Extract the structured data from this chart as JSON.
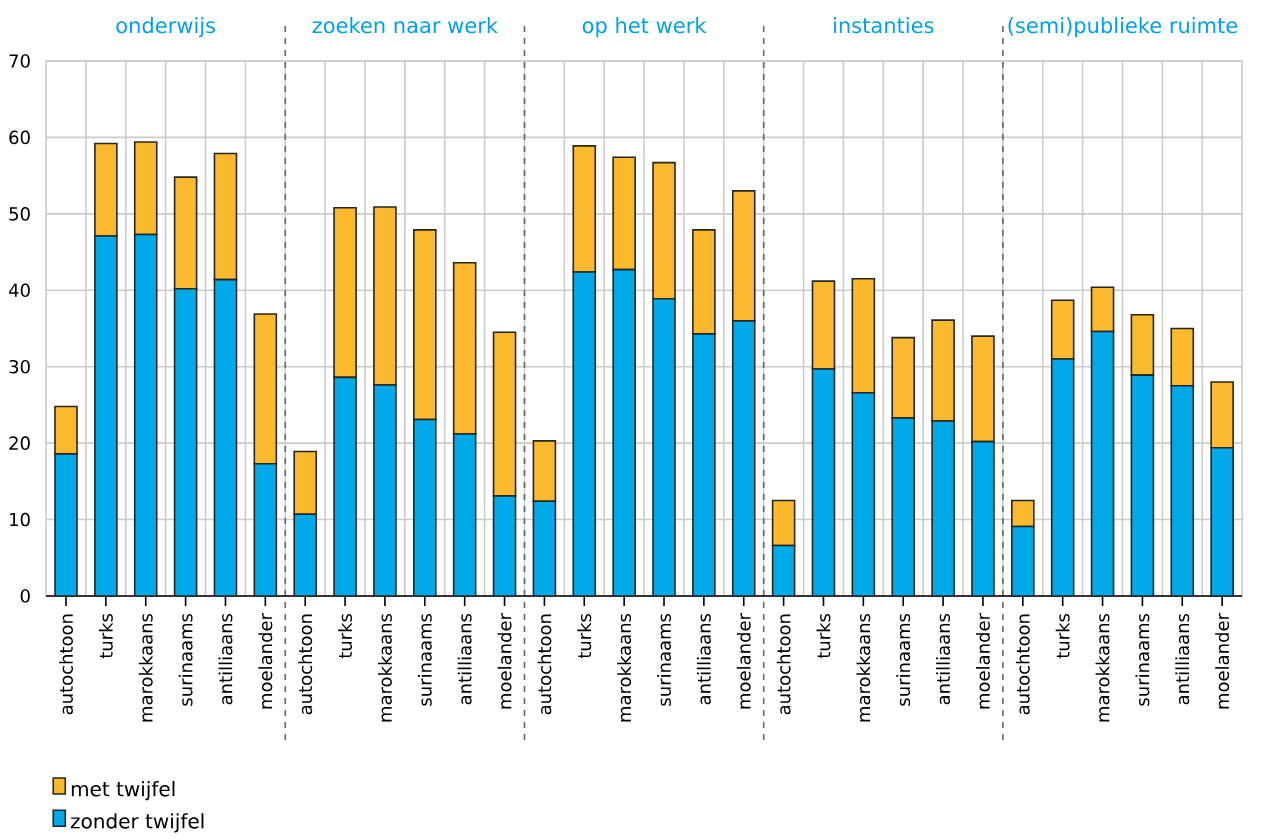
{
  "chart_data": {
    "type": "bar",
    "stacked": true,
    "categories": [
      "autochtoon",
      "turks",
      "marokkaans",
      "surinaams",
      "antilliaans",
      "moelander",
      "autochtoon",
      "turks",
      "marokkaans",
      "surinaams",
      "antilliaans",
      "moelander",
      "autochtoon",
      "turks",
      "marokkaans",
      "surinaams",
      "antilliaans",
      "moelander",
      "autochtoon",
      "turks",
      "marokkaans",
      "surinaams",
      "antilliaans",
      "moelander",
      "autochtoon",
      "turks",
      "marokkaans",
      "surinaams",
      "antilliaans",
      "moelander"
    ],
    "series": [
      {
        "name": "zonder twijfel",
        "color": "#00aae8",
        "values": [
          18.6,
          47.1,
          47.3,
          40.2,
          41.4,
          17.3,
          10.7,
          28.6,
          27.6,
          23.1,
          21.2,
          13.1,
          12.4,
          42.4,
          42.7,
          38.9,
          34.3,
          36.0,
          6.6,
          29.7,
          26.6,
          23.3,
          22.9,
          20.2,
          9.1,
          31.0,
          34.6,
          28.9,
          27.5,
          19.4
        ]
      },
      {
        "name": "met twijfel",
        "color": "#fbba2e",
        "values": [
          6.2,
          12.1,
          12.1,
          14.6,
          16.5,
          19.6,
          8.2,
          22.2,
          23.3,
          24.8,
          22.4,
          21.4,
          7.9,
          16.5,
          14.7,
          17.8,
          13.6,
          17.0,
          5.9,
          11.5,
          14.9,
          10.5,
          13.2,
          13.8,
          3.4,
          7.7,
          5.8,
          7.9,
          7.5,
          8.6
        ]
      }
    ],
    "annotations": [
      "onderwijs",
      "zoeken naar werk",
      "op het werk",
      "instanties",
      "(semi)publieke ruimte"
    ],
    "ylim": [
      0,
      70
    ],
    "yticks": [
      0,
      10,
      20,
      30,
      40,
      50,
      60,
      70
    ],
    "grid": true,
    "legend": "bottom left"
  }
}
